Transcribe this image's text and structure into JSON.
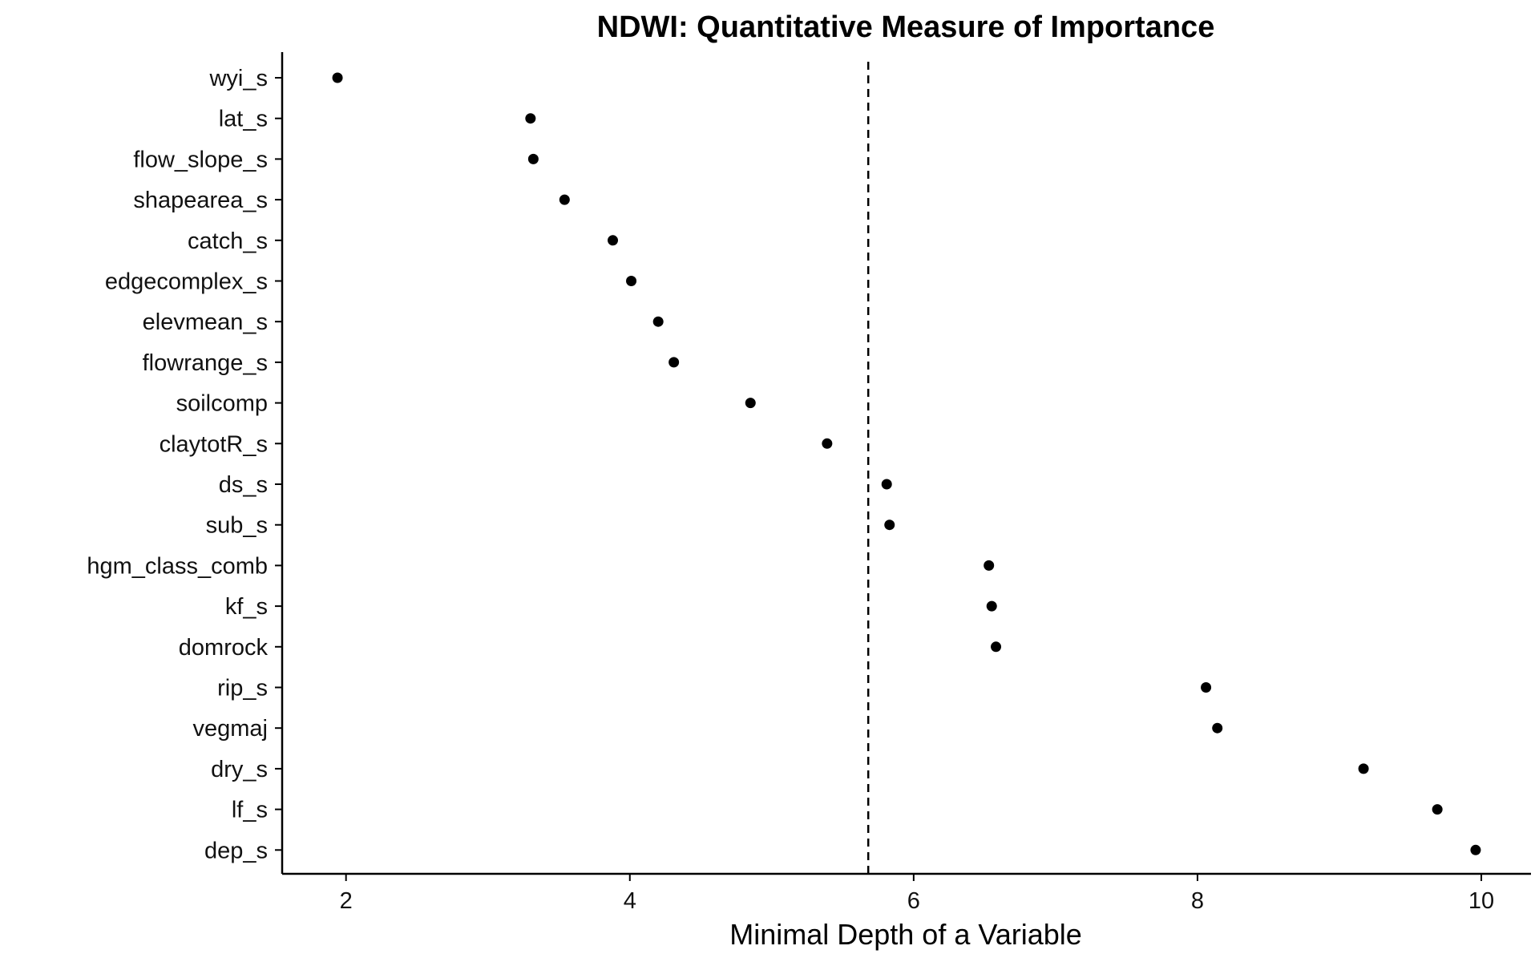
{
  "chart_data": {
    "type": "scatter",
    "title": "NDWI: Quantitative Measure of Importance",
    "xlabel": "Minimal Depth of a Variable",
    "ylabel": "",
    "xlim": [
      1.55,
      10.35
    ],
    "x_ticks": [
      2,
      4,
      6,
      8,
      10
    ],
    "grid": false,
    "legend": "none",
    "threshold": 5.68,
    "point_color": "#000000",
    "categories": [
      "wyi_s",
      "lat_s",
      "flow_slope_s",
      "shapearea_s",
      "catch_s",
      "edgecomplex_s",
      "elevmean_s",
      "flowrange_s",
      "soilcomp",
      "claytotR_s",
      "ds_s",
      "sub_s",
      "hgm_class_comb",
      "kf_s",
      "domrock",
      "rip_s",
      "vegmaj",
      "dry_s",
      "lf_s",
      "dep_s"
    ],
    "values": [
      1.94,
      3.3,
      3.32,
      3.54,
      3.88,
      4.01,
      4.2,
      4.31,
      4.85,
      5.39,
      5.81,
      5.83,
      6.53,
      6.55,
      6.58,
      8.06,
      8.14,
      9.17,
      9.69,
      9.96
    ]
  }
}
